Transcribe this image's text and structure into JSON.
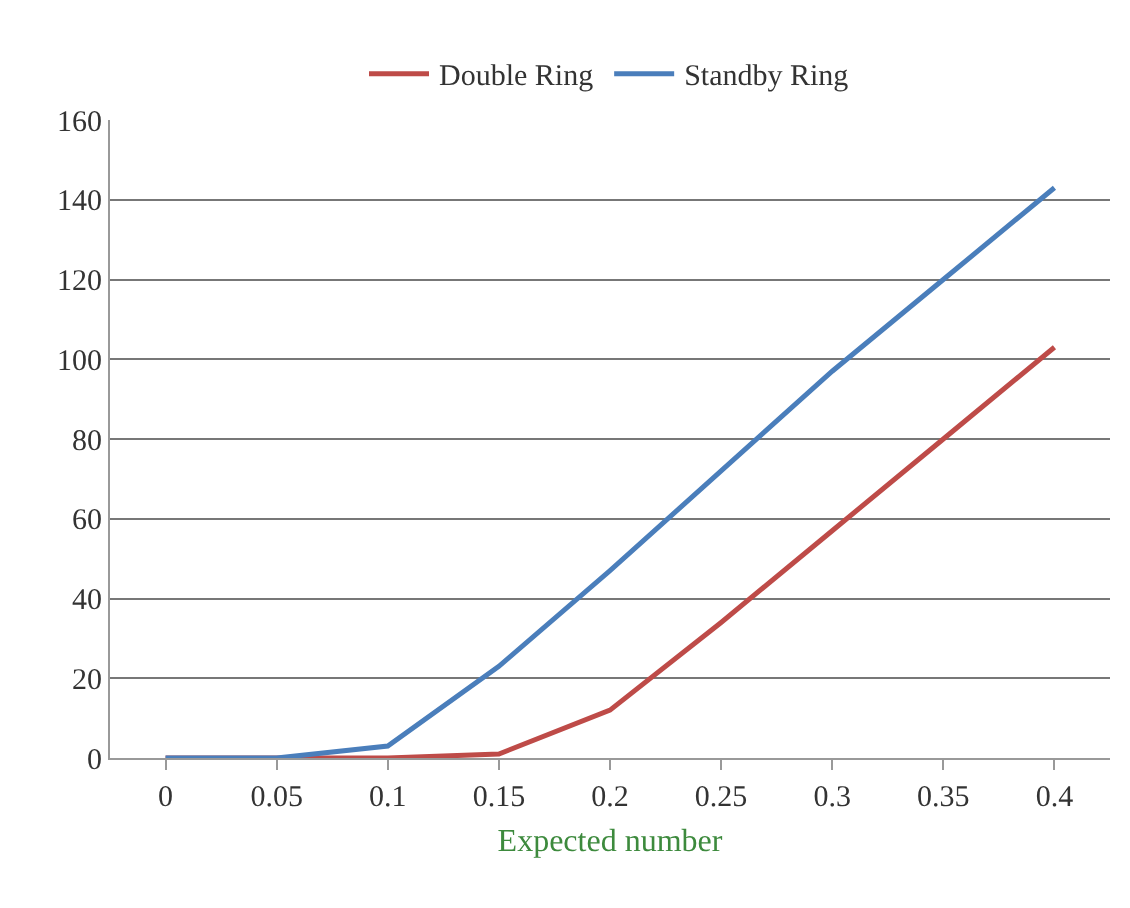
{
  "chart_data": {
    "type": "line",
    "xlabel": "Expected number",
    "categories": [
      "0",
      "0.05",
      "0.1",
      "0.15",
      "0.2",
      "0.25",
      "0.3",
      "0.35",
      "0.4"
    ],
    "series": [
      {
        "name": "Double Ring",
        "color": "#be4b48",
        "values": [
          0,
          0,
          0,
          1,
          12,
          34,
          57,
          80,
          103
        ]
      },
      {
        "name": "Standby Ring",
        "color": "#4a7ebb",
        "values": [
          0,
          0,
          3,
          23,
          47,
          72,
          97,
          120,
          143
        ]
      }
    ],
    "ylim": [
      0,
      160
    ],
    "yticks": [
      0,
      20,
      40,
      60,
      80,
      100,
      120,
      140,
      160
    ],
    "grid": "y",
    "legend": "top",
    "marker": "none",
    "line_style": "solid"
  }
}
